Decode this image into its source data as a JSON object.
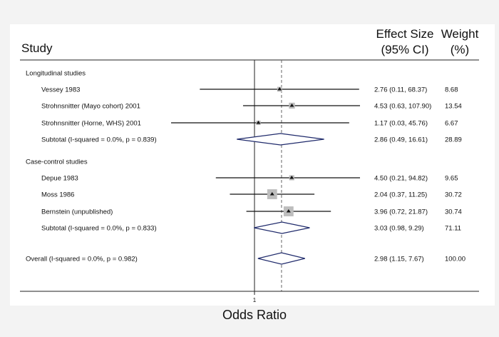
{
  "chart_data": {
    "type": "forest",
    "headers": {
      "study": "Study",
      "effect_line1": "Effect Size",
      "effect_line2": "(95% CI)",
      "weight_line1": "Weight",
      "weight_line2": "(%)"
    },
    "xlabel": "Odds Ratio",
    "null_value": 1,
    "null_tick_label": "1",
    "overall_effect": 2.98,
    "x_scale": "log",
    "x_range": [
      0.03,
      120
    ],
    "rows": [
      {
        "kind": "group",
        "label": "Longitudinal studies"
      },
      {
        "kind": "study",
        "label": "Vessey 1983",
        "or": 2.76,
        "lo": 0.11,
        "hi": 68.37,
        "ci_text": "2.76 (0.11, 68.37)",
        "weight": "8.68"
      },
      {
        "kind": "study",
        "label": "Strohnsnitter (Mayo cohort) 2001",
        "or": 4.53,
        "lo": 0.63,
        "hi": 107.9,
        "ci_text": "4.53 (0.63, 107.90)",
        "weight": "13.54"
      },
      {
        "kind": "study",
        "label": "Strohnsnitter (Horne, WHS) 2001",
        "or": 1.17,
        "lo": 0.03,
        "hi": 45.76,
        "ci_text": "1.17 (0.03, 45.76)",
        "weight": "6.67"
      },
      {
        "kind": "subtotal",
        "label": "Subtotal  (I-squared = 0.0%, p = 0.839)",
        "or": 2.86,
        "lo": 0.49,
        "hi": 16.61,
        "ci_text": "2.86 (0.49, 16.61)",
        "weight": "28.89"
      },
      {
        "kind": "group",
        "label": "Case-control studies"
      },
      {
        "kind": "study",
        "label": "Depue 1983",
        "or": 4.5,
        "lo": 0.21,
        "hi": 94.82,
        "ci_text": "4.50 (0.21, 94.82)",
        "weight": "9.65"
      },
      {
        "kind": "study",
        "label": "Moss 1986",
        "or": 2.04,
        "lo": 0.37,
        "hi": 11.25,
        "ci_text": "2.04 (0.37, 11.25)",
        "weight": "30.72"
      },
      {
        "kind": "study",
        "label": "Bernstein (unpublished)",
        "or": 3.96,
        "lo": 0.72,
        "hi": 21.87,
        "ci_text": "3.96 (0.72, 21.87)",
        "weight": "30.74"
      },
      {
        "kind": "subtotal",
        "label": "Subtotal  (I-squared = 0.0%, p = 0.833)",
        "or": 3.03,
        "lo": 0.98,
        "hi": 9.29,
        "ci_text": "3.03 (0.98, 9.29)",
        "weight": "71.11"
      },
      {
        "kind": "overall",
        "label": "Overall  (I-squared = 0.0%, p = 0.982)",
        "or": 2.98,
        "lo": 1.15,
        "hi": 7.67,
        "ci_text": "2.98 (1.15, 7.67)",
        "weight": "100.00"
      }
    ]
  }
}
